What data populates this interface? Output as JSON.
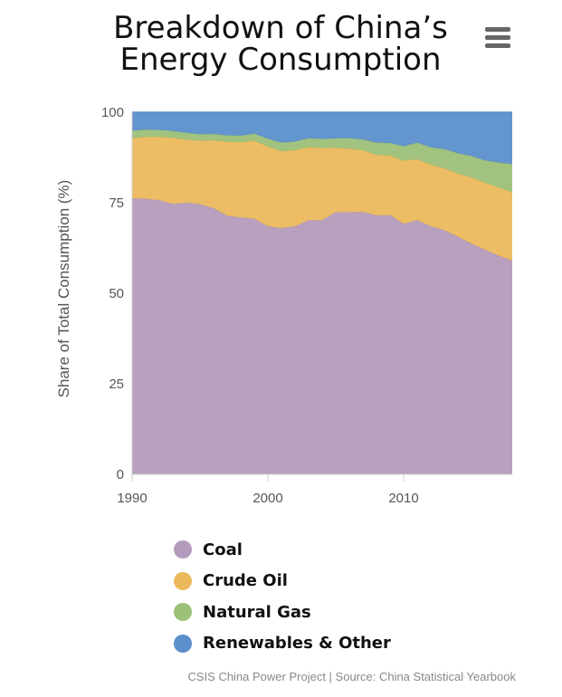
{
  "title_line1": "Breakdown of China’s",
  "title_line2": "Energy Consumption",
  "credits": "CSIS China Power Project | Source: China Statistical Yearbook",
  "menu_icon": "hamburger-menu-icon",
  "colors": {
    "coal": "#b49bbb",
    "crude_oil": "#ebb95c",
    "natural_gas": "#9cc078",
    "renewables": "#5b8fcb",
    "axis_text": "#555555",
    "grid": "#dddddd"
  },
  "chart_data": {
    "type": "area",
    "stacking": "percent",
    "ylabel": "Share of Total Consumption (%)",
    "xlabel": "",
    "xlim": [
      1990,
      2018
    ],
    "ylim": [
      0,
      100
    ],
    "x_ticks": [
      "1990",
      "2000",
      "2010"
    ],
    "y_ticks": [
      "0",
      "25",
      "50",
      "75",
      "100"
    ],
    "x": [
      1990,
      1991,
      1992,
      1993,
      1994,
      1995,
      1996,
      1997,
      1998,
      1999,
      2000,
      2001,
      2002,
      2003,
      2004,
      2005,
      2006,
      2007,
      2008,
      2009,
      2010,
      2011,
      2012,
      2013,
      2014,
      2015,
      2016,
      2017,
      2018
    ],
    "series": [
      {
        "name": "Coal",
        "color": "#b49bbb",
        "values": [
          76.2,
          76.1,
          75.7,
          74.7,
          75.0,
          74.6,
          73.5,
          71.4,
          70.9,
          70.6,
          68.5,
          68.0,
          68.5,
          70.2,
          70.2,
          72.4,
          72.4,
          72.5,
          71.5,
          71.6,
          69.2,
          70.2,
          68.5,
          67.4,
          65.6,
          63.7,
          62.0,
          60.4,
          59.0
        ]
      },
      {
        "name": "Crude Oil",
        "color": "#ebb95c",
        "values": [
          16.6,
          17.1,
          17.5,
          18.2,
          17.4,
          17.5,
          18.7,
          20.4,
          20.8,
          21.5,
          22.0,
          21.2,
          21.0,
          20.1,
          19.9,
          17.8,
          17.5,
          17.0,
          16.7,
          16.4,
          17.4,
          16.8,
          17.0,
          17.1,
          17.4,
          18.3,
          18.5,
          18.8,
          18.9
        ]
      },
      {
        "name": "Natural Gas",
        "color": "#9cc078",
        "values": [
          2.1,
          2.0,
          1.9,
          1.9,
          1.9,
          1.8,
          1.8,
          1.8,
          1.8,
          2.0,
          2.2,
          2.4,
          2.4,
          2.5,
          2.5,
          2.6,
          2.9,
          3.0,
          3.4,
          3.5,
          4.0,
          4.6,
          4.8,
          5.3,
          5.7,
          5.9,
          6.2,
          6.9,
          7.8
        ]
      },
      {
        "name": "Renewables & Other",
        "color": "#5b8fcb",
        "values": [
          5.1,
          4.8,
          4.9,
          5.2,
          5.7,
          6.1,
          6.0,
          6.4,
          6.5,
          5.9,
          7.3,
          8.4,
          8.1,
          7.2,
          7.4,
          7.2,
          7.2,
          7.5,
          8.4,
          8.5,
          9.4,
          8.4,
          9.7,
          10.2,
          11.3,
          12.1,
          13.3,
          13.9,
          14.3
        ]
      }
    ],
    "legend": [
      "Coal",
      "Crude Oil",
      "Natural Gas",
      "Renewables & Other"
    ],
    "legend_position": "bottom-left",
    "grid": true
  }
}
